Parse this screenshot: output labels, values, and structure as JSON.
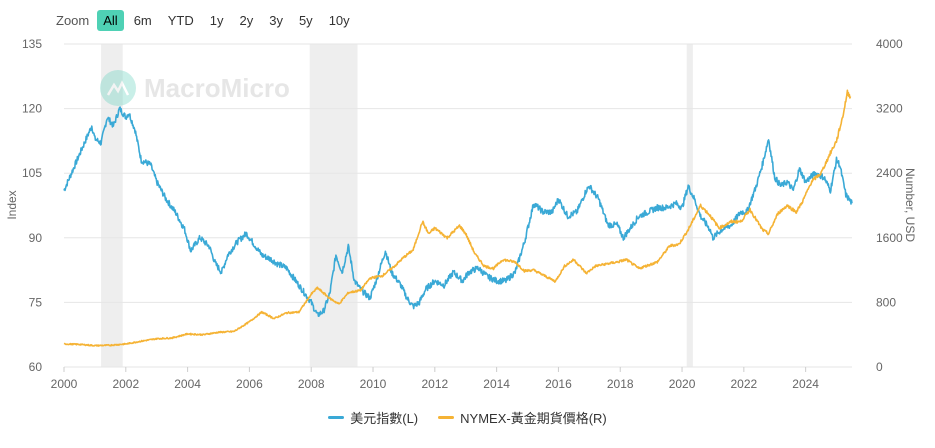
{
  "zoom": {
    "label": "Zoom",
    "buttons": [
      "All",
      "6m",
      "YTD",
      "1y",
      "2y",
      "3y",
      "5y",
      "10y"
    ],
    "active": "All"
  },
  "watermark": "MacroMicro",
  "colors": {
    "dxy": "#3aa9d6",
    "gold": "#f5b335",
    "recession": "#eeeeee",
    "grid": "#e6e6e6"
  },
  "chart_data": {
    "type": "line",
    "x_range": [
      2000.0,
      2025.5
    ],
    "xticks": [
      "2000",
      "2002",
      "2004",
      "2006",
      "2008",
      "2010",
      "2012",
      "2014",
      "2016",
      "2018",
      "2020",
      "2022",
      "2024"
    ],
    "left_axis": {
      "label": "Index",
      "range": [
        60,
        135
      ],
      "ticks": [
        "60",
        "75",
        "90",
        "105",
        "120",
        "135"
      ]
    },
    "right_axis": {
      "label": "Number, USD",
      "range": [
        0,
        4000
      ],
      "ticks": [
        "0",
        "800",
        "1600",
        "2400",
        "3200",
        "4000"
      ]
    },
    "recessions": [
      [
        2001.2,
        2001.9
      ],
      [
        2007.95,
        2009.5
      ],
      [
        2020.15,
        2020.35
      ]
    ],
    "grid": true,
    "legend_position": "bottom",
    "series": [
      {
        "name": "美元指數(L)",
        "axis": "left",
        "points": [
          [
            2000.0,
            101
          ],
          [
            2000.3,
            106
          ],
          [
            2000.6,
            111
          ],
          [
            2000.9,
            116
          ],
          [
            2001.0,
            113
          ],
          [
            2001.2,
            112
          ],
          [
            2001.4,
            118
          ],
          [
            2001.6,
            116
          ],
          [
            2001.8,
            120
          ],
          [
            2002.0,
            118
          ],
          [
            2002.1,
            119
          ],
          [
            2002.3,
            115
          ],
          [
            2002.5,
            108
          ],
          [
            2002.8,
            107
          ],
          [
            2003.0,
            103
          ],
          [
            2003.3,
            99
          ],
          [
            2003.6,
            96
          ],
          [
            2003.9,
            92
          ],
          [
            2004.1,
            87
          ],
          [
            2004.4,
            90
          ],
          [
            2004.7,
            88
          ],
          [
            2004.9,
            84
          ],
          [
            2005.1,
            82
          ],
          [
            2005.3,
            86
          ],
          [
            2005.6,
            89
          ],
          [
            2005.9,
            91
          ],
          [
            2006.1,
            89
          ],
          [
            2006.4,
            86
          ],
          [
            2006.7,
            85
          ],
          [
            2006.9,
            84
          ],
          [
            2007.2,
            83
          ],
          [
            2007.5,
            80
          ],
          [
            2007.8,
            77
          ],
          [
            2008.0,
            75
          ],
          [
            2008.2,
            72
          ],
          [
            2008.4,
            73
          ],
          [
            2008.6,
            77
          ],
          [
            2008.8,
            86
          ],
          [
            2009.0,
            82
          ],
          [
            2009.2,
            88
          ],
          [
            2009.4,
            80
          ],
          [
            2009.6,
            78
          ],
          [
            2009.9,
            76
          ],
          [
            2010.1,
            80
          ],
          [
            2010.4,
            87
          ],
          [
            2010.6,
            82
          ],
          [
            2010.9,
            79
          ],
          [
            2011.1,
            76
          ],
          [
            2011.3,
            74
          ],
          [
            2011.5,
            75
          ],
          [
            2011.7,
            78
          ],
          [
            2012.0,
            80
          ],
          [
            2012.3,
            79
          ],
          [
            2012.6,
            82
          ],
          [
            2012.9,
            80
          ],
          [
            2013.1,
            82
          ],
          [
            2013.4,
            83
          ],
          [
            2013.7,
            81
          ],
          [
            2014.0,
            80
          ],
          [
            2014.3,
            80
          ],
          [
            2014.6,
            82
          ],
          [
            2014.9,
            89
          ],
          [
            2015.2,
            98
          ],
          [
            2015.5,
            96
          ],
          [
            2015.8,
            96
          ],
          [
            2016.0,
            99
          ],
          [
            2016.3,
            95
          ],
          [
            2016.6,
            96
          ],
          [
            2016.9,
            101
          ],
          [
            2017.0,
            102
          ],
          [
            2017.3,
            99
          ],
          [
            2017.6,
            93
          ],
          [
            2017.9,
            93
          ],
          [
            2018.1,
            90
          ],
          [
            2018.3,
            92
          ],
          [
            2018.6,
            95
          ],
          [
            2018.9,
            96
          ],
          [
            2019.2,
            97
          ],
          [
            2019.5,
            97
          ],
          [
            2019.8,
            98
          ],
          [
            2020.0,
            97
          ],
          [
            2020.2,
            102
          ],
          [
            2020.4,
            99
          ],
          [
            2020.6,
            95
          ],
          [
            2020.9,
            92
          ],
          [
            2021.0,
            90
          ],
          [
            2021.3,
            92
          ],
          [
            2021.6,
            93
          ],
          [
            2021.9,
            96
          ],
          [
            2022.1,
            96
          ],
          [
            2022.4,
            102
          ],
          [
            2022.6,
            107
          ],
          [
            2022.8,
            113
          ],
          [
            2023.0,
            104
          ],
          [
            2023.2,
            102
          ],
          [
            2023.4,
            103
          ],
          [
            2023.6,
            101
          ],
          [
            2023.8,
            106
          ],
          [
            2024.0,
            103
          ],
          [
            2024.3,
            105
          ],
          [
            2024.6,
            104
          ],
          [
            2024.8,
            101
          ],
          [
            2025.0,
            108
          ],
          [
            2025.1,
            107
          ],
          [
            2025.3,
            100
          ],
          [
            2025.5,
            98
          ]
        ]
      },
      {
        "name": "NYMEX-黃金期貨價格(R)",
        "axis": "right",
        "points": [
          [
            2000.0,
            285
          ],
          [
            2000.5,
            280
          ],
          [
            2001.0,
            265
          ],
          [
            2001.5,
            270
          ],
          [
            2002.0,
            285
          ],
          [
            2002.5,
            320
          ],
          [
            2003.0,
            350
          ],
          [
            2003.5,
            360
          ],
          [
            2004.0,
            410
          ],
          [
            2004.5,
            400
          ],
          [
            2005.0,
            430
          ],
          [
            2005.5,
            440
          ],
          [
            2006.0,
            560
          ],
          [
            2006.4,
            680
          ],
          [
            2006.8,
            600
          ],
          [
            2007.2,
            670
          ],
          [
            2007.6,
            680
          ],
          [
            2008.0,
            900
          ],
          [
            2008.2,
            980
          ],
          [
            2008.6,
            850
          ],
          [
            2008.9,
            780
          ],
          [
            2009.2,
            920
          ],
          [
            2009.6,
            950
          ],
          [
            2009.9,
            1100
          ],
          [
            2010.3,
            1130
          ],
          [
            2010.7,
            1250
          ],
          [
            2011.0,
            1360
          ],
          [
            2011.3,
            1450
          ],
          [
            2011.6,
            1800
          ],
          [
            2011.8,
            1650
          ],
          [
            2012.0,
            1720
          ],
          [
            2012.4,
            1600
          ],
          [
            2012.8,
            1750
          ],
          [
            2013.0,
            1650
          ],
          [
            2013.3,
            1400
          ],
          [
            2013.6,
            1250
          ],
          [
            2013.9,
            1220
          ],
          [
            2014.2,
            1330
          ],
          [
            2014.6,
            1300
          ],
          [
            2014.9,
            1190
          ],
          [
            2015.2,
            1200
          ],
          [
            2015.6,
            1120
          ],
          [
            2015.9,
            1060
          ],
          [
            2016.2,
            1250
          ],
          [
            2016.5,
            1330
          ],
          [
            2016.9,
            1160
          ],
          [
            2017.2,
            1250
          ],
          [
            2017.6,
            1280
          ],
          [
            2017.9,
            1300
          ],
          [
            2018.2,
            1330
          ],
          [
            2018.6,
            1220
          ],
          [
            2018.9,
            1260
          ],
          [
            2019.2,
            1300
          ],
          [
            2019.6,
            1500
          ],
          [
            2019.9,
            1520
          ],
          [
            2020.2,
            1700
          ],
          [
            2020.6,
            2000
          ],
          [
            2020.9,
            1880
          ],
          [
            2021.2,
            1720
          ],
          [
            2021.6,
            1800
          ],
          [
            2021.9,
            1800
          ],
          [
            2022.2,
            1950
          ],
          [
            2022.6,
            1700
          ],
          [
            2022.8,
            1650
          ],
          [
            2023.1,
            1900
          ],
          [
            2023.4,
            2000
          ],
          [
            2023.7,
            1920
          ],
          [
            2023.9,
            2050
          ],
          [
            2024.2,
            2300
          ],
          [
            2024.5,
            2400
          ],
          [
            2024.8,
            2650
          ],
          [
            2025.0,
            2800
          ],
          [
            2025.2,
            3100
          ],
          [
            2025.35,
            3400
          ],
          [
            2025.45,
            3350
          ]
        ]
      }
    ]
  }
}
